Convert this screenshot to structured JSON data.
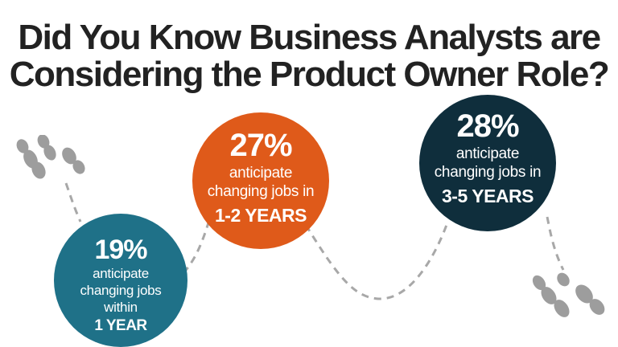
{
  "title": {
    "line1": "Did You Know Business Analysts are",
    "line2": "Considering the Product Owner Role?"
  },
  "colors": {
    "title": "#222222",
    "bubble_1": "#1f7188",
    "bubble_2": "#df5a1a",
    "bubble_3": "#0f2e3c",
    "path": "#a8a8a8",
    "footprints": "#9d9d9d"
  },
  "stats": [
    {
      "percent": "19%",
      "line1": "anticipate",
      "line2": "changing jobs",
      "line3": "within",
      "timeframe": "1 YEAR"
    },
    {
      "percent": "27%",
      "line1": "anticipate",
      "line2": "changing jobs in",
      "timeframe": "1-2 YEARS"
    },
    {
      "percent": "28%",
      "line1": "anticipate",
      "line2": "changing jobs in",
      "timeframe": "3-5 YEARS"
    }
  ],
  "icons": {
    "start": "footprints-icon",
    "end": "footprints-icon"
  }
}
